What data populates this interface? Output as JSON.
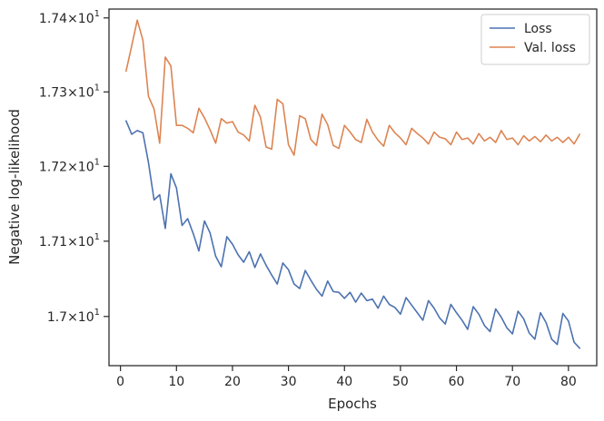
{
  "chart_data": {
    "type": "line",
    "xlabel": "Epochs",
    "ylabel": "Negative log-likelihood",
    "xlim": [
      -2.05,
      85.05
    ],
    "ylim": [
      16.935,
      17.412
    ],
    "y_scale": "log",
    "grid": false,
    "legend_position": "top-right",
    "x_ticks": [
      0,
      10,
      20,
      30,
      40,
      50,
      60,
      70,
      80
    ],
    "x_tick_labels": [
      "0",
      "10",
      "20",
      "30",
      "40",
      "50",
      "60",
      "70",
      "80"
    ],
    "y_ticks": [
      17.0,
      17.1,
      17.2,
      17.3,
      17.4
    ],
    "y_tick_labels": [
      {
        "mant": "1.7",
        "exp": "1"
      },
      {
        "mant": "1.71",
        "exp": "1"
      },
      {
        "mant": "1.72",
        "exp": "1"
      },
      {
        "mant": "1.73",
        "exp": "1"
      },
      {
        "mant": "1.74",
        "exp": "1"
      }
    ],
    "x": [
      1,
      2,
      3,
      4,
      5,
      6,
      7,
      8,
      9,
      10,
      11,
      12,
      13,
      14,
      15,
      16,
      17,
      18,
      19,
      20,
      21,
      22,
      23,
      24,
      25,
      26,
      27,
      28,
      29,
      30,
      31,
      32,
      33,
      34,
      35,
      36,
      37,
      38,
      39,
      40,
      41,
      42,
      43,
      44,
      45,
      46,
      47,
      48,
      49,
      50,
      51,
      52,
      53,
      54,
      55,
      56,
      57,
      58,
      59,
      60,
      61,
      62,
      63,
      64,
      65,
      66,
      67,
      68,
      69,
      70,
      71,
      72,
      73,
      74,
      75,
      76,
      77,
      78,
      79,
      80,
      81,
      82
    ],
    "series": [
      {
        "name": "Loss",
        "color": "#4c72b0",
        "values": [
          17.261,
          17.243,
          17.248,
          17.245,
          17.205,
          17.155,
          17.162,
          17.117,
          17.19,
          17.171,
          17.121,
          17.13,
          17.11,
          17.087,
          17.127,
          17.111,
          17.08,
          17.066,
          17.106,
          17.096,
          17.082,
          17.072,
          17.086,
          17.065,
          17.083,
          17.068,
          17.055,
          17.043,
          17.071,
          17.062,
          17.043,
          17.037,
          17.061,
          17.048,
          17.036,
          17.027,
          17.047,
          17.033,
          17.032,
          17.024,
          17.032,
          17.019,
          17.031,
          17.021,
          17.023,
          17.011,
          17.027,
          17.016,
          17.012,
          17.003,
          17.025,
          17.015,
          17.005,
          16.995,
          17.021,
          17.011,
          16.998,
          16.99,
          17.016,
          17.005,
          16.995,
          16.983,
          17.013,
          17.003,
          16.988,
          16.98,
          17.01,
          16.999,
          16.985,
          16.977,
          17.007,
          16.997,
          16.978,
          16.97,
          17.005,
          16.992,
          16.97,
          16.963,
          17.004,
          16.994,
          16.966,
          16.958
        ]
      },
      {
        "name": "Val. loss",
        "color": "#dd8452",
        "values": [
          17.328,
          17.362,
          17.397,
          17.37,
          17.294,
          17.277,
          17.231,
          17.347,
          17.335,
          17.255,
          17.255,
          17.251,
          17.245,
          17.278,
          17.265,
          17.249,
          17.231,
          17.264,
          17.258,
          17.26,
          17.246,
          17.242,
          17.234,
          17.282,
          17.266,
          17.226,
          17.223,
          17.29,
          17.284,
          17.229,
          17.215,
          17.268,
          17.264,
          17.236,
          17.228,
          17.27,
          17.256,
          17.228,
          17.224,
          17.255,
          17.246,
          17.236,
          17.232,
          17.263,
          17.246,
          17.235,
          17.227,
          17.255,
          17.245,
          17.238,
          17.229,
          17.251,
          17.244,
          17.238,
          17.23,
          17.246,
          17.239,
          17.237,
          17.229,
          17.246,
          17.236,
          17.238,
          17.23,
          17.244,
          17.234,
          17.239,
          17.232,
          17.248,
          17.236,
          17.238,
          17.229,
          17.241,
          17.234,
          17.24,
          17.233,
          17.242,
          17.234,
          17.239,
          17.232,
          17.239,
          17.23,
          17.243
        ]
      }
    ]
  }
}
